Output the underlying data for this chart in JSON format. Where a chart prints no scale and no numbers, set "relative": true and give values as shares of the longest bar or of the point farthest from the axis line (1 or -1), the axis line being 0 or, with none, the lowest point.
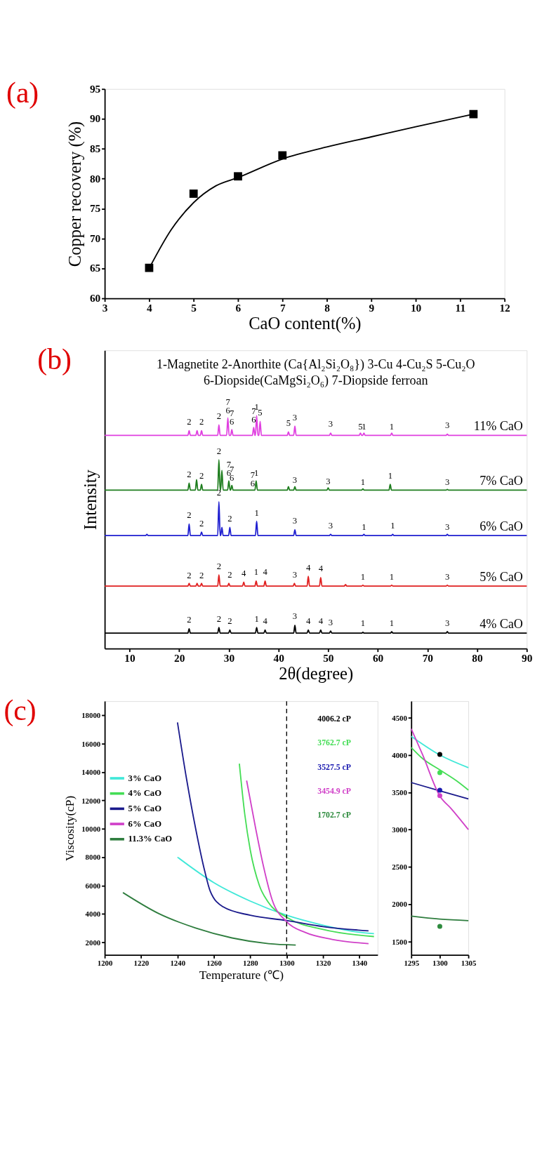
{
  "chart_data": [
    {
      "type": "line",
      "title": "(a)",
      "xlabel": "CaO content(%)",
      "ylabel": "Copper recovery (%)",
      "xlim": [
        3,
        12
      ],
      "xticks": [
        3,
        4,
        5,
        6,
        7,
        8,
        9,
        10,
        11,
        12
      ],
      "ylim": [
        60,
        95
      ],
      "yticks": [
        60,
        65,
        70,
        75,
        80,
        85,
        90,
        95
      ],
      "grid": false,
      "legend": false,
      "series": [
        {
          "type": "line",
          "color": "#000000",
          "marker": "none",
          "x": [
            4,
            4.5,
            5,
            5.5,
            6,
            7,
            8,
            9,
            10,
            11.3
          ],
          "values": [
            65,
            71.5,
            76,
            78.8,
            80.2,
            83.3,
            85.3,
            87,
            88.7,
            90.8
          ]
        },
        {
          "type": "scatter",
          "color": "#000000",
          "marker": "square",
          "x": [
            4,
            5,
            6,
            7,
            11.3
          ],
          "values": [
            65.1,
            77.5,
            80.4,
            83.9,
            90.8
          ]
        }
      ]
    },
    {
      "type": "line",
      "title": "(b)",
      "xlabel": "2θ(degree)",
      "ylabel": "Intensity",
      "relative": true,
      "tick_labels": "x",
      "xlim": [
        5,
        90
      ],
      "xticks": [
        10,
        20,
        30,
        40,
        50,
        60,
        70,
        80,
        90
      ],
      "grid": false,
      "legend": false,
      "series": [
        {
          "name": "4% CaO",
          "color": "#000000",
          "x": [
            5,
            21.75,
            22,
            22.25,
            27.75,
            28,
            28.25,
            29.95,
            30.2,
            30.45,
            35.35,
            35.6,
            35.85,
            37.05,
            37.3,
            37.55,
            43.05,
            43.3,
            43.55,
            45.75,
            46,
            46.25,
            48.25,
            48.5,
            48.75,
            50.25,
            50.5,
            50.75,
            56.75,
            57,
            57.25,
            62.55,
            62.8,
            63.05,
            73.75,
            74,
            74.25,
            90
          ],
          "values": [
            0.066,
            0.066,
            0.085,
            0.066,
            0.066,
            0.09,
            0.066,
            0.066,
            0.08,
            0.066,
            0.066,
            0.09,
            0.066,
            0.066,
            0.08,
            0.066,
            0.066,
            0.1,
            0.066,
            0.066,
            0.08,
            0.066,
            0.066,
            0.08,
            0.066,
            0.066,
            0.075,
            0.066,
            0.066,
            0.07,
            0.066,
            0.066,
            0.072,
            0.066,
            0.066,
            0.073,
            0.066,
            0.066
          ]
        },
        {
          "name": "5% CaO",
          "color": "#e02020",
          "x": [
            5,
            21.75,
            22,
            22.25,
            23.35,
            23.6,
            23.85,
            24.25,
            24.5,
            24.75,
            27.75,
            28,
            28.25,
            29.75,
            30,
            30.25,
            32.75,
            33,
            33.25,
            35.25,
            35.5,
            35.75,
            37.05,
            37.3,
            37.55,
            42.95,
            43.2,
            43.45,
            45.75,
            46,
            46.25,
            48.25,
            48.5,
            48.75,
            53.25,
            53.5,
            53.75,
            56.75,
            57,
            57.25,
            62.55,
            62.8,
            63.05,
            73.75,
            74,
            74.25,
            90
          ],
          "values": [
            0.268,
            0.268,
            0.28,
            0.268,
            0.268,
            0.28,
            0.268,
            0.268,
            0.28,
            0.268,
            0.268,
            0.316,
            0.268,
            0.268,
            0.28,
            0.268,
            0.268,
            0.285,
            0.268,
            0.268,
            0.29,
            0.268,
            0.268,
            0.29,
            0.268,
            0.268,
            0.28,
            0.268,
            0.268,
            0.31,
            0.268,
            0.268,
            0.305,
            0.268,
            0.268,
            0.275,
            0.268,
            0.268,
            0.272,
            0.268,
            0.268,
            0.272,
            0.268,
            0.268,
            0.272,
            0.268,
            0.268
          ]
        },
        {
          "name": "6% CaO",
          "color": "#1f1fd0",
          "x": [
            5,
            13.25,
            13.5,
            13.75,
            21.75,
            22,
            22.25,
            24.25,
            24.5,
            24.75,
            27.75,
            28,
            28.25,
            28.35,
            28.6,
            28.85,
            29.95,
            30.2,
            30.45,
            35.35,
            35.6,
            35.85,
            43.05,
            43.3,
            43.55,
            50.25,
            50.5,
            50.75,
            56.95,
            57.2,
            57.45,
            62.75,
            63,
            63.25,
            73.75,
            74,
            74.25,
            90
          ],
          "values": [
            0.485,
            0.485,
            0.49,
            0.485,
            0.485,
            0.535,
            0.485,
            0.485,
            0.5,
            0.485,
            0.485,
            0.63,
            0.485,
            0.485,
            0.52,
            0.485,
            0.485,
            0.52,
            0.485,
            0.485,
            0.547,
            0.485,
            0.485,
            0.51,
            0.485,
            0.485,
            0.49,
            0.485,
            0.485,
            0.49,
            0.485,
            0.485,
            0.49,
            0.485,
            0.485,
            0.49,
            0.485,
            0.485
          ]
        },
        {
          "name": "7% CaO",
          "color": "#1e7d1e",
          "x": [
            5,
            21.75,
            22,
            22.25,
            23.25,
            23.5,
            23.75,
            24.25,
            24.5,
            24.75,
            27.75,
            28,
            28.25,
            28.35,
            28.6,
            28.85,
            29.75,
            30,
            30.25,
            30.35,
            30.6,
            30.85,
            35.25,
            35.5,
            35.75,
            41.75,
            42,
            42.25,
            43.05,
            43.3,
            43.55,
            49.75,
            50,
            50.25,
            56.75,
            57,
            57.25,
            62.25,
            62.5,
            62.75,
            73.75,
            74,
            74.25,
            90
          ],
          "values": [
            0.68,
            0.68,
            0.71,
            0.68,
            0.68,
            0.725,
            0.68,
            0.68,
            0.705,
            0.68,
            0.68,
            0.81,
            0.68,
            0.68,
            0.765,
            0.68,
            0.68,
            0.72,
            0.68,
            0.68,
            0.7,
            0.68,
            0.68,
            0.72,
            0.68,
            0.68,
            0.695,
            0.68,
            0.68,
            0.695,
            0.68,
            0.68,
            0.69,
            0.68,
            0.68,
            0.685,
            0.68,
            0.68,
            0.705,
            0.68,
            0.68,
            0.683,
            0.68,
            0.68
          ]
        },
        {
          "name": "11% CaO",
          "color": "#e040e0",
          "x": [
            5,
            21.75,
            22,
            22.25,
            23.35,
            23.6,
            23.85,
            24.25,
            24.5,
            24.75,
            27.75,
            28,
            28.25,
            29.55,
            29.8,
            30.05,
            30.35,
            30.6,
            30.85,
            34.75,
            35,
            35.25,
            35.35,
            35.6,
            35.85,
            36.05,
            36.3,
            36.55,
            41.75,
            42,
            42.25,
            43.05,
            43.3,
            43.55,
            50.25,
            50.5,
            50.75,
            56.25,
            56.5,
            56.75,
            56.95,
            57.2,
            57.45,
            62.55,
            62.8,
            63.05,
            73.75,
            74,
            74.25,
            90
          ],
          "values": [
            0.915,
            0.915,
            0.935,
            0.915,
            0.915,
            0.935,
            0.915,
            0.915,
            0.935,
            0.915,
            0.915,
            0.96,
            0.915,
            0.915,
            0.99,
            0.915,
            0.915,
            0.94,
            0.915,
            0.915,
            0.95,
            0.915,
            0.915,
            1.0,
            0.915,
            0.915,
            0.975,
            0.915,
            0.915,
            0.93,
            0.915,
            0.915,
            0.955,
            0.915,
            0.915,
            0.925,
            0.915,
            0.915,
            0.925,
            0.915,
            0.915,
            0.925,
            0.915,
            0.915,
            0.925,
            0.915,
            0.915,
            0.92,
            0.915,
            0.915
          ]
        }
      ],
      "annotations": [
        "1-Magnetite   2-Anorthite (Ca{Al₂Si₂O₈})   3-Cu   4-Cu₂S  5-Cu₂O",
        "6-Diopside(CaMgSi₂O₆)    7-Diopside ferroan",
        {
          "text": "2",
          "x": 22,
          "y": 0.95
        },
        {
          "text": "2",
          "x": 24.5,
          "y": 0.95
        },
        {
          "text": "2",
          "x": 28,
          "y": 0.975
        },
        {
          "text": "7",
          "x": 29.8,
          "y": 1.0
        },
        {
          "text": "6",
          "x": 29.8,
          "y": 1.0
        },
        {
          "text": "7",
          "x": 30.6,
          "y": 0.95
        },
        {
          "text": "6",
          "x": 30.6,
          "y": 0.95
        },
        {
          "text": "7",
          "x": 35,
          "y": 0.96
        },
        {
          "text": "6",
          "x": 35,
          "y": 0.96
        },
        {
          "text": "1",
          "x": 35.6,
          "y": 1.015
        },
        {
          "text": "5",
          "x": 36.3,
          "y": 0.99
        },
        {
          "text": "5",
          "x": 42,
          "y": 0.945
        },
        {
          "text": "3",
          "x": 43.3,
          "y": 0.97
        },
        {
          "text": "3",
          "x": 50.5,
          "y": 0.94
        },
        {
          "text": "5",
          "x": 56.5,
          "y": 0.93
        },
        {
          "text": "1",
          "x": 57.2,
          "y": 0.93
        },
        {
          "text": "1",
          "x": 62.8,
          "y": 0.93
        },
        {
          "text": "3",
          "x": 74,
          "y": 0.935
        },
        {
          "text": "2",
          "x": 22,
          "y": 0.725
        },
        {
          "text": "2",
          "x": 24.5,
          "y": 0.72
        },
        {
          "text": "2",
          "x": 28,
          "y": 0.825
        },
        {
          "text": "7",
          "x": 30,
          "y": 0.73
        },
        {
          "text": "6",
          "x": 30,
          "y": 0.73
        },
        {
          "text": "7",
          "x": 30.6,
          "y": 0.71
        },
        {
          "text": "6",
          "x": 30.6,
          "y": 0.71
        },
        {
          "text": "7",
          "x": 34.8,
          "y": 0.685
        },
        {
          "text": "1",
          "x": 35.55,
          "y": 0.73
        },
        {
          "text": "6",
          "x": 34.8,
          "y": 0.685
        },
        {
          "text": "3",
          "x": 43.3,
          "y": 0.7
        },
        {
          "text": "3",
          "x": 50,
          "y": 0.695
        },
        {
          "text": "1",
          "x": 57,
          "y": 0.69
        },
        {
          "text": "1",
          "x": 62.5,
          "y": 0.72
        },
        {
          "text": "3",
          "x": 74,
          "y": 0.69
        },
        {
          "text": "2",
          "x": 22,
          "y": 0.55
        },
        {
          "text": "2",
          "x": 24.5,
          "y": 0.515
        },
        {
          "text": "2",
          "x": 28,
          "y": 0.645
        },
        {
          "text": "2",
          "x": 30.2,
          "y": 0.535
        },
        {
          "text": "1",
          "x": 35.6,
          "y": 0.56
        },
        {
          "text": "3",
          "x": 43.3,
          "y": 0.525
        },
        {
          "text": "3",
          "x": 50.5,
          "y": 0.505
        },
        {
          "text": "1",
          "x": 57.2,
          "y": 0.5
        },
        {
          "text": "1",
          "x": 63,
          "y": 0.505
        },
        {
          "text": "3",
          "x": 74,
          "y": 0.5
        },
        {
          "text": "2",
          "x": 22,
          "y": 0.29
        },
        {
          "text": "2",
          "x": 24.5,
          "y": 0.29
        },
        {
          "text": "2",
          "x": 28,
          "y": 0.33
        },
        {
          "text": "2",
          "x": 30.2,
          "y": 0.295
        },
        {
          "text": "4",
          "x": 33,
          "y": 0.3
        },
        {
          "text": "1",
          "x": 35.5,
          "y": 0.305
        },
        {
          "text": "4",
          "x": 37.3,
          "y": 0.305
        },
        {
          "text": "3",
          "x": 43.3,
          "y": 0.295
        },
        {
          "text": "4",
          "x": 46,
          "y": 0.325
        },
        {
          "text": "4",
          "x": 48.5,
          "y": 0.32
        },
        {
          "text": "1",
          "x": 57,
          "y": 0.285
        },
        {
          "text": "1",
          "x": 62.8,
          "y": 0.285
        },
        {
          "text": "3",
          "x": 74,
          "y": 0.285
        },
        {
          "text": "2",
          "x": 22,
          "y": 0.1
        },
        {
          "text": "2",
          "x": 28,
          "y": 0.105
        },
        {
          "text": "2",
          "x": 30.2,
          "y": 0.095
        },
        {
          "text": "1",
          "x": 35.6,
          "y": 0.105
        },
        {
          "text": "4",
          "x": 37.3,
          "y": 0.095
        },
        {
          "text": "3",
          "x": 43.3,
          "y": 0.115
        },
        {
          "text": "4",
          "x": 46,
          "y": 0.095
        },
        {
          "text": "4",
          "x": 48.5,
          "y": 0.095
        },
        {
          "text": "3",
          "x": 50.5,
          "y": 0.09
        },
        {
          "text": "1",
          "x": 57,
          "y": 0.085
        },
        {
          "text": "1",
          "x": 62.8,
          "y": 0.085
        },
        {
          "text": "3",
          "x": 74,
          "y": 0.085
        }
      ]
    },
    {
      "type": "line",
      "title": "(c)",
      "xlabel": "Temperature (℃)",
      "ylabel": "Viscosity(cP)",
      "xlim": [
        1200,
        1350
      ],
      "xticks": [
        1200,
        1220,
        1240,
        1260,
        1280,
        1300,
        1320,
        1340
      ],
      "ylim": [
        1100,
        19000
      ],
      "yticks": [
        2000,
        4000,
        6000,
        8000,
        10000,
        12000,
        14000,
        16000,
        18000
      ],
      "grid": false,
      "legend": "left",
      "series": [
        {
          "name": "3% CaO",
          "color": "#40e8d8",
          "x": [
            1240,
            1260,
            1280,
            1300,
            1320,
            1340,
            1348
          ],
          "values": [
            8000,
            6200,
            4900,
            3900,
            3200,
            2700,
            2600
          ]
        },
        {
          "name": "4% CaO",
          "color": "#44dd55",
          "x": [
            1274,
            1277,
            1280,
            1285,
            1290,
            1300,
            1320,
            1348
          ],
          "values": [
            14600,
            11000,
            8500,
            6000,
            4800,
            3760,
            2900,
            2400
          ]
        },
        {
          "name": "5% CaO",
          "color": "#1a1a8c",
          "x": [
            1240,
            1245,
            1250,
            1255,
            1258,
            1265,
            1280,
            1300,
            1320,
            1345
          ],
          "values": [
            17500,
            13500,
            10000,
            7000,
            5600,
            4500,
            3900,
            3530,
            3100,
            2800
          ]
        },
        {
          "name": "6% CaO",
          "color": "#d040c8",
          "x": [
            1278,
            1283,
            1287,
            1292,
            1300,
            1310,
            1325,
            1345
          ],
          "values": [
            13400,
            10000,
            7500,
            5000,
            3450,
            2700,
            2200,
            1900
          ]
        },
        {
          "name": "11.3% CaO",
          "color": "#2e7d3e",
          "x": [
            1210,
            1230,
            1250,
            1270,
            1290,
            1305
          ],
          "values": [
            5500,
            4000,
            3000,
            2300,
            1900,
            1800
          ]
        }
      ],
      "ref_lines": [
        {
          "axis": "x",
          "value": 1300,
          "line_style": "dashed",
          "color": "#000000"
        }
      ],
      "annotations": [
        "4006.2 cP",
        "3762.7 cP",
        "3527.5 cP",
        "3454.9 cP",
        "1702.7 cP"
      ]
    },
    {
      "type": "line",
      "xlim": [
        1295,
        1305
      ],
      "xticks": [
        1295,
        1300,
        1305
      ],
      "ylim": [
        1320,
        4720
      ],
      "yticks": [
        1500,
        2000,
        2500,
        3000,
        3500,
        4000,
        4500
      ],
      "grid": false,
      "legend": false,
      "series": [
        {
          "color": "#40e8d8",
          "x": [
            1295,
            1300,
            1305
          ],
          "values": [
            4250,
            4000,
            3830
          ]
        },
        {
          "color": "#44dd55",
          "x": [
            1295,
            1297,
            1300,
            1303,
            1305
          ],
          "values": [
            4100,
            3950,
            3800,
            3650,
            3530
          ]
        },
        {
          "color": "#1a1a8c",
          "x": [
            1295,
            1300,
            1305
          ],
          "values": [
            3630,
            3520,
            3410
          ]
        },
        {
          "color": "#d040c8",
          "x": [
            1295,
            1297,
            1300,
            1302,
            1305
          ],
          "values": [
            4350,
            4000,
            3450,
            3280,
            3000
          ]
        },
        {
          "color": "#2e7d3e",
          "x": [
            1295,
            1300,
            1305
          ],
          "values": [
            1840,
            1800,
            1780
          ]
        },
        {
          "type": "scatter",
          "marker": "circle",
          "x": [
            1300,
            1300,
            1300,
            1300,
            1300
          ],
          "values": [
            4006.2,
            3762.7,
            3527.5,
            3454.9,
            1702.7
          ],
          "colors": [
            "#000000",
            "#44dd55",
            "#1a1ab0",
            "#d040c8",
            "#2e8b3e"
          ]
        }
      ]
    }
  ]
}
